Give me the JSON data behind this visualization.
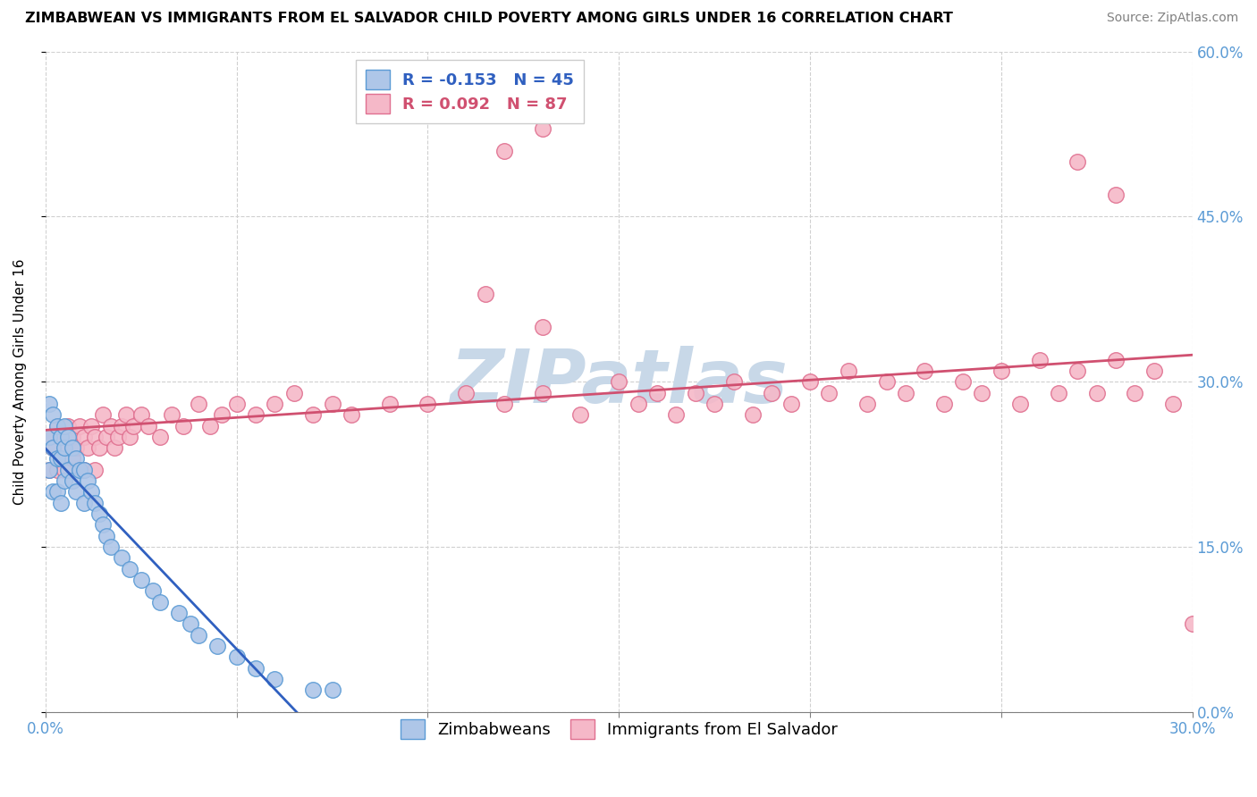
{
  "title": "ZIMBABWEAN VS IMMIGRANTS FROM EL SALVADOR CHILD POVERTY AMONG GIRLS UNDER 16 CORRELATION CHART",
  "source": "Source: ZipAtlas.com",
  "ylabel": "Child Poverty Among Girls Under 16",
  "xlim": [
    0.0,
    0.3
  ],
  "ylim": [
    0.0,
    0.6
  ],
  "xtick_positions": [
    0.0,
    0.05,
    0.1,
    0.15,
    0.2,
    0.25,
    0.3
  ],
  "xtick_labels": [
    "0.0%",
    "",
    "",
    "",
    "",
    "",
    "30.0%"
  ],
  "ytick_positions": [
    0.0,
    0.15,
    0.3,
    0.45,
    0.6
  ],
  "ytick_labels": [
    "0.0%",
    "15.0%",
    "30.0%",
    "45.0%",
    "60.0%"
  ],
  "blue_R": -0.153,
  "blue_N": 45,
  "pink_R": 0.092,
  "pink_N": 87,
  "blue_face_color": "#aec6e8",
  "pink_face_color": "#f5b8c8",
  "blue_edge_color": "#5b9bd5",
  "pink_edge_color": "#e07090",
  "blue_line_color": "#3060c0",
  "pink_line_color": "#d05070",
  "watermark_color": "#c8d8e8",
  "grid_color": "#d0d0d0",
  "title_color": "#000000",
  "source_color": "#808080",
  "tick_color": "#5b9bd5",
  "blue_x": [
    0.001,
    0.001,
    0.001,
    0.002,
    0.002,
    0.002,
    0.003,
    0.003,
    0.003,
    0.004,
    0.004,
    0.004,
    0.005,
    0.005,
    0.005,
    0.006,
    0.006,
    0.007,
    0.007,
    0.008,
    0.008,
    0.009,
    0.01,
    0.01,
    0.011,
    0.012,
    0.013,
    0.014,
    0.015,
    0.016,
    0.017,
    0.02,
    0.022,
    0.025,
    0.028,
    0.03,
    0.035,
    0.038,
    0.04,
    0.045,
    0.05,
    0.055,
    0.06,
    0.07,
    0.075
  ],
  "blue_y": [
    0.28,
    0.25,
    0.22,
    0.27,
    0.24,
    0.2,
    0.26,
    0.23,
    0.2,
    0.25,
    0.23,
    0.19,
    0.26,
    0.24,
    0.21,
    0.25,
    0.22,
    0.24,
    0.21,
    0.23,
    0.2,
    0.22,
    0.22,
    0.19,
    0.21,
    0.2,
    0.19,
    0.18,
    0.17,
    0.16,
    0.15,
    0.14,
    0.13,
    0.12,
    0.11,
    0.1,
    0.09,
    0.08,
    0.07,
    0.06,
    0.05,
    0.04,
    0.03,
    0.02,
    0.02
  ],
  "pink_x": [
    0.001,
    0.001,
    0.002,
    0.003,
    0.003,
    0.004,
    0.005,
    0.005,
    0.006,
    0.007,
    0.007,
    0.008,
    0.009,
    0.01,
    0.01,
    0.011,
    0.012,
    0.013,
    0.013,
    0.014,
    0.015,
    0.016,
    0.017,
    0.018,
    0.019,
    0.02,
    0.021,
    0.022,
    0.023,
    0.025,
    0.027,
    0.03,
    0.033,
    0.036,
    0.04,
    0.043,
    0.046,
    0.05,
    0.055,
    0.06,
    0.065,
    0.07,
    0.075,
    0.08,
    0.09,
    0.1,
    0.11,
    0.12,
    0.13,
    0.14,
    0.15,
    0.155,
    0.16,
    0.165,
    0.17,
    0.175,
    0.18,
    0.185,
    0.19,
    0.195,
    0.2,
    0.205,
    0.21,
    0.215,
    0.22,
    0.225,
    0.23,
    0.235,
    0.24,
    0.245,
    0.25,
    0.255,
    0.26,
    0.265,
    0.27,
    0.275,
    0.28,
    0.285,
    0.29,
    0.295,
    0.12,
    0.13,
    0.27,
    0.28,
    0.13,
    0.115,
    0.3
  ],
  "pink_y": [
    0.25,
    0.22,
    0.24,
    0.26,
    0.22,
    0.25,
    0.24,
    0.22,
    0.26,
    0.23,
    0.25,
    0.24,
    0.26,
    0.25,
    0.22,
    0.24,
    0.26,
    0.25,
    0.22,
    0.24,
    0.27,
    0.25,
    0.26,
    0.24,
    0.25,
    0.26,
    0.27,
    0.25,
    0.26,
    0.27,
    0.26,
    0.25,
    0.27,
    0.26,
    0.28,
    0.26,
    0.27,
    0.28,
    0.27,
    0.28,
    0.29,
    0.27,
    0.28,
    0.27,
    0.28,
    0.28,
    0.29,
    0.28,
    0.29,
    0.27,
    0.3,
    0.28,
    0.29,
    0.27,
    0.29,
    0.28,
    0.3,
    0.27,
    0.29,
    0.28,
    0.3,
    0.29,
    0.31,
    0.28,
    0.3,
    0.29,
    0.31,
    0.28,
    0.3,
    0.29,
    0.31,
    0.28,
    0.32,
    0.29,
    0.31,
    0.29,
    0.32,
    0.29,
    0.31,
    0.28,
    0.51,
    0.53,
    0.5,
    0.47,
    0.35,
    0.38,
    0.08
  ]
}
